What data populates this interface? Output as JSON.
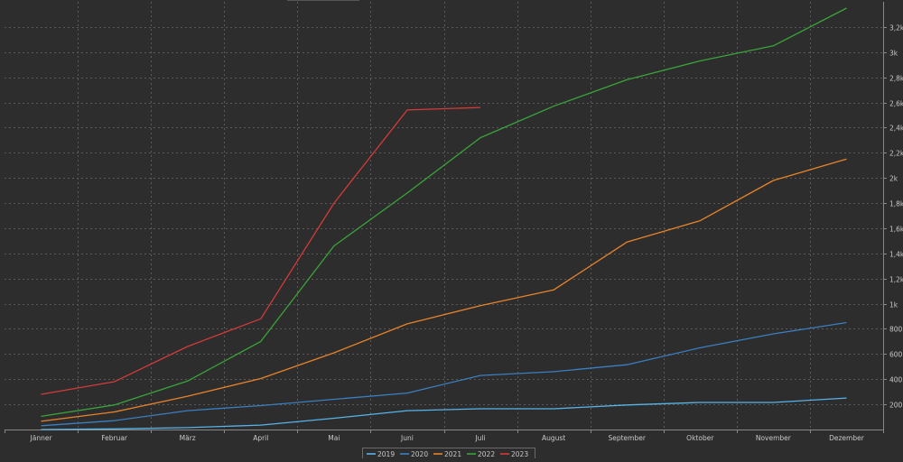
{
  "chart_data": {
    "type": "line",
    "title": "",
    "xlabel": "",
    "ylabel": "",
    "categories": [
      "Jänner",
      "Februar",
      "März",
      "April",
      "Mai",
      "Juni",
      "Juli",
      "August",
      "September",
      "Oktober",
      "November",
      "Dezember"
    ],
    "ylim": [
      0,
      3400
    ],
    "yticks": [
      {
        "value": 200,
        "label": "200"
      },
      {
        "value": 400,
        "label": "400"
      },
      {
        "value": 600,
        "label": "600"
      },
      {
        "value": 800,
        "label": "800"
      },
      {
        "value": 1000,
        "label": "1k"
      },
      {
        "value": 1200,
        "label": "1,2k"
      },
      {
        "value": 1400,
        "label": "1,4k"
      },
      {
        "value": 1600,
        "label": "1,6k"
      },
      {
        "value": 1800,
        "label": "1,8k"
      },
      {
        "value": 2000,
        "label": "2k"
      },
      {
        "value": 2200,
        "label": "2,2k"
      },
      {
        "value": 2400,
        "label": "2,4k"
      },
      {
        "value": 2600,
        "label": "2,6k"
      },
      {
        "value": 2800,
        "label": "2,8k"
      },
      {
        "value": 3000,
        "label": "3k"
      },
      {
        "value": 3200,
        "label": "3,2k"
      }
    ],
    "grid": true,
    "legend_position": "bottom-center",
    "y_axis_side": "right",
    "series": [
      {
        "name": "2019",
        "color": "#56b4e9",
        "values": [
          0,
          5,
          15,
          35,
          90,
          150,
          165,
          165,
          195,
          215,
          215,
          250
        ]
      },
      {
        "name": "2020",
        "color": "#3a7fc1",
        "values": [
          30,
          70,
          150,
          190,
          240,
          290,
          430,
          460,
          515,
          650,
          760,
          850
        ]
      },
      {
        "name": "2021",
        "color": "#e8832a",
        "values": [
          65,
          140,
          265,
          405,
          610,
          840,
          985,
          1110,
          1490,
          1660,
          1980,
          2150
        ]
      },
      {
        "name": "2022",
        "color": "#3aa43a",
        "values": [
          105,
          195,
          385,
          700,
          1460,
          1880,
          2320,
          2570,
          2780,
          2930,
          3050,
          3350
        ]
      },
      {
        "name": "2023",
        "color": "#d43a3a",
        "values": [
          280,
          380,
          660,
          880,
          1800,
          2540,
          2560,
          null,
          null,
          null,
          null,
          null
        ]
      }
    ]
  }
}
